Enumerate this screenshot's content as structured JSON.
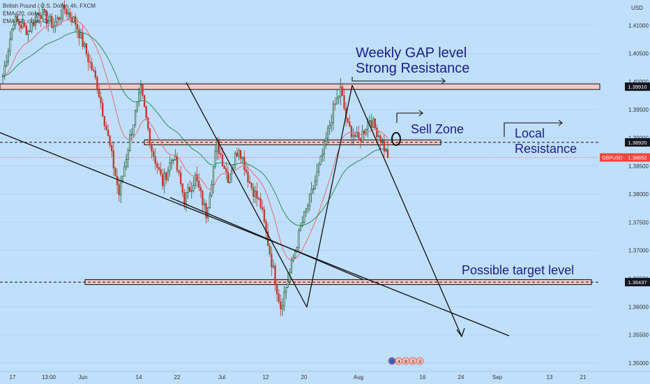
{
  "legend": {
    "symbol_line": "British Pound / U.S. Dollar, 4h, FXCM",
    "ema_fast": "EMA (20, close, 0)",
    "ema_slow": "EMA (50, close, 0)"
  },
  "currency_label": "USD",
  "colors": {
    "background": "#c0dffa",
    "up_candle": "#1e5b3c",
    "down_candle": "#c0392b",
    "ema_fast": "#e07070",
    "ema_slow": "#2e8b57",
    "zone_fill": "#f2c7c7",
    "badge": "#f0463c",
    "annotation_text": "#1b1d8a"
  },
  "annotations": {
    "weekly_gap": "Weekly GAP level",
    "strong_resistance": "Strong Resistance",
    "sell_zone": "Sell Zone",
    "local": "Local",
    "resistance": "Resistance",
    "possible_target": "Possible target level"
  },
  "chart_data": {
    "type": "candlestick",
    "symbol": "GBPUSD",
    "y_ticks": [
      "1.41000",
      "1.40500",
      "1.40000",
      "1.39500",
      "1.39000",
      "1.38500",
      "1.38000",
      "1.37500",
      "1.37000",
      "1.36500",
      "1.36000",
      "1.35500",
      "1.35000"
    ],
    "y_tick_values": [
      1.41,
      1.405,
      1.4,
      1.395,
      1.39,
      1.385,
      1.38,
      1.375,
      1.37,
      1.365,
      1.36,
      1.355,
      1.35
    ],
    "ylim": [
      1.3485,
      1.4145
    ],
    "x_ticks": [
      "17",
      "13:00",
      "Jun",
      "14",
      "22",
      "Jul",
      "12",
      "20",
      "Aug",
      "16",
      "24",
      "Sep",
      "13",
      "21"
    ],
    "price_labels": [
      {
        "label": "1.39910",
        "value": 1.3991,
        "kind": "level"
      },
      {
        "label": "1.38920",
        "value": 1.3892,
        "kind": "level"
      },
      {
        "label": "1.38652",
        "value": 1.38652,
        "kind": "current",
        "symbol": "GBPUSD"
      },
      {
        "label": "1.36437",
        "value": 1.36437,
        "kind": "level"
      }
    ],
    "levels": [
      {
        "name": "weekly-gap-resistance",
        "value": 1.3991
      },
      {
        "name": "local-resistance",
        "value": 1.3892
      },
      {
        "name": "possible-target",
        "value": 1.36437
      }
    ],
    "events_badge": [
      "0",
      "4",
      "8",
      "3",
      "3"
    ],
    "waypoints": [
      {
        "i": 0,
        "p": 1.401
      },
      {
        "i": 6,
        "p": 1.411
      },
      {
        "i": 14,
        "p": 1.409
      },
      {
        "i": 20,
        "p": 1.4125
      },
      {
        "i": 28,
        "p": 1.41
      },
      {
        "i": 34,
        "p": 1.413
      },
      {
        "i": 40,
        "p": 1.4105
      },
      {
        "i": 46,
        "p": 1.405
      },
      {
        "i": 52,
        "p": 1.3995
      },
      {
        "i": 58,
        "p": 1.39
      },
      {
        "i": 64,
        "p": 1.38
      },
      {
        "i": 70,
        "p": 1.39
      },
      {
        "i": 76,
        "p": 1.3985
      },
      {
        "i": 82,
        "p": 1.388
      },
      {
        "i": 88,
        "p": 1.382
      },
      {
        "i": 94,
        "p": 1.387
      },
      {
        "i": 100,
        "p": 1.379
      },
      {
        "i": 106,
        "p": 1.383
      },
      {
        "i": 112,
        "p": 1.3765
      },
      {
        "i": 118,
        "p": 1.389
      },
      {
        "i": 124,
        "p": 1.383
      },
      {
        "i": 130,
        "p": 1.3885
      },
      {
        "i": 136,
        "p": 1.382
      },
      {
        "i": 142,
        "p": 1.378
      },
      {
        "i": 148,
        "p": 1.368
      },
      {
        "i": 153,
        "p": 1.36
      },
      {
        "i": 158,
        "p": 1.366
      },
      {
        "i": 164,
        "p": 1.374
      },
      {
        "i": 170,
        "p": 1.38
      },
      {
        "i": 176,
        "p": 1.387
      },
      {
        "i": 182,
        "p": 1.395
      },
      {
        "i": 186,
        "p": 1.3985
      },
      {
        "i": 190,
        "p": 1.392
      },
      {
        "i": 196,
        "p": 1.3895
      },
      {
        "i": 202,
        "p": 1.3935
      },
      {
        "i": 208,
        "p": 1.39
      },
      {
        "i": 212,
        "p": 1.3865
      }
    ]
  }
}
